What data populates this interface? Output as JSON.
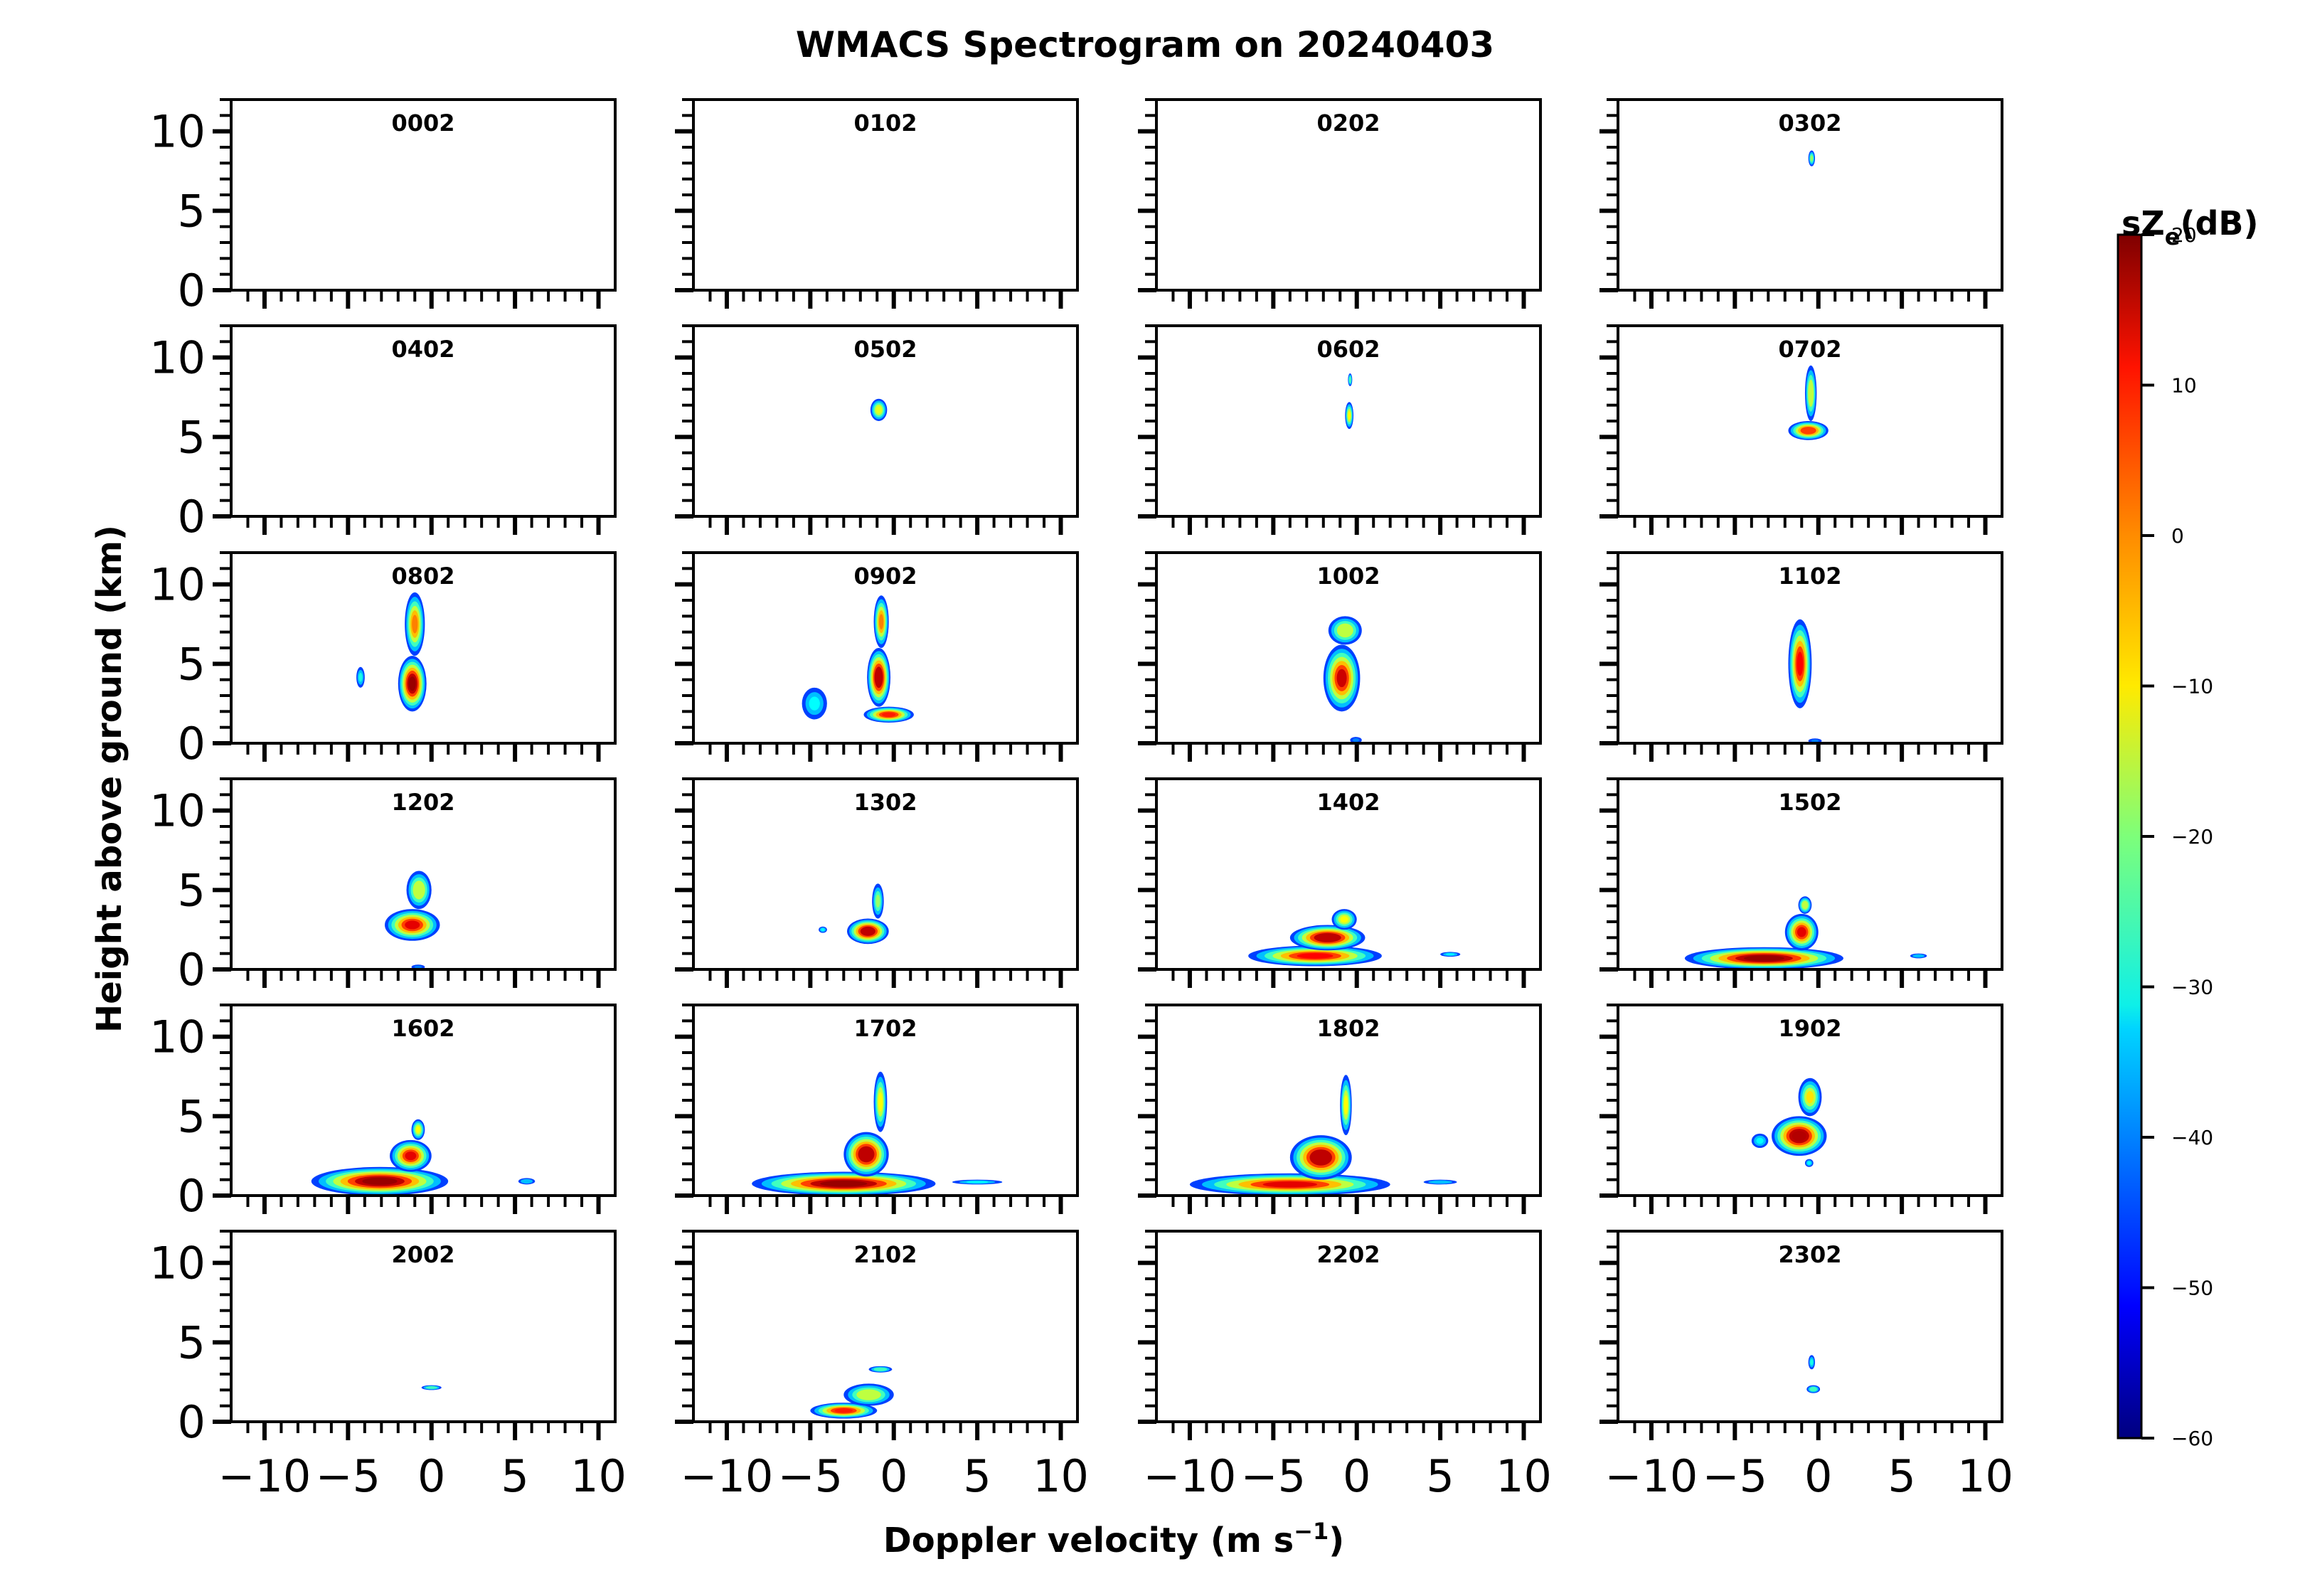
{
  "chart_data": {
    "type": "heatmap",
    "title": "WMACS Spectrogram on 20240403",
    "xlabel": "Doppler velocity (m s",
    "xlabel_sup": "−1",
    "xlabel_close": ")",
    "ylabel": "Height above ground (km)",
    "xlim": [
      -12,
      11
    ],
    "ylim": [
      0,
      12
    ],
    "xticks": [
      -10,
      -5,
      0,
      5,
      10
    ],
    "xtick_labels": [
      "−10",
      "−5",
      "0",
      "5",
      "10"
    ],
    "yticks": [
      0,
      5,
      10
    ],
    "ytick_labels": [
      "0",
      "5",
      "10"
    ],
    "colorbar": {
      "label": "sZ",
      "label_sub": "e",
      "label_unit": "(dB)",
      "range": [
        -60,
        20
      ],
      "ticks": [
        -60,
        -50,
        -40,
        -30,
        -20,
        -10,
        0,
        10,
        20
      ],
      "tick_labels": [
        "−60",
        "−50",
        "−40",
        "−30",
        "−20",
        "−10",
        "0",
        "10",
        "20"
      ],
      "colormap": "jet"
    },
    "panels": [
      {
        "label": "0002",
        "blobs": []
      },
      {
        "label": "0102",
        "blobs": []
      },
      {
        "label": "0202",
        "blobs": []
      },
      {
        "label": "0302",
        "blobs": [
          {
            "x": [
              -0.6,
              -0.2
            ],
            "y": [
              7.8,
              8.8
            ],
            "peak": -18
          }
        ]
      },
      {
        "label": "0402",
        "blobs": []
      },
      {
        "label": "0502",
        "blobs": [
          {
            "x": [
              -1.4,
              -0.4
            ],
            "y": [
              6.0,
              7.4
            ],
            "peak": -12
          }
        ]
      },
      {
        "label": "0602",
        "blobs": [
          {
            "x": [
              -0.7,
              -0.2
            ],
            "y": [
              5.5,
              7.2
            ],
            "peak": -10
          },
          {
            "x": [
              -0.5,
              -0.3
            ],
            "y": [
              8.2,
              9.0
            ],
            "peak": -25
          }
        ]
      },
      {
        "label": "0702",
        "blobs": [
          {
            "x": [
              -1.8,
              0.6
            ],
            "y": [
              4.8,
              6.0
            ],
            "peak": 5
          },
          {
            "x": [
              -0.8,
              -0.1
            ],
            "y": [
              6.0,
              9.5
            ],
            "peak": -15
          }
        ]
      },
      {
        "label": "0802",
        "blobs": [
          {
            "x": [
              -2.0,
              -0.3
            ],
            "y": [
              2.0,
              5.5
            ],
            "peak": 18
          },
          {
            "x": [
              -1.6,
              -0.4
            ],
            "y": [
              5.5,
              9.5
            ],
            "peak": 0
          },
          {
            "x": [
              -4.5,
              -4.0
            ],
            "y": [
              3.5,
              4.8
            ],
            "peak": -28
          }
        ]
      },
      {
        "label": "0902",
        "blobs": [
          {
            "x": [
              -1.8,
              1.2
            ],
            "y": [
              1.3,
              2.3
            ],
            "peak": 8
          },
          {
            "x": [
              -1.6,
              -0.2
            ],
            "y": [
              2.3,
              6.0
            ],
            "peak": 15
          },
          {
            "x": [
              -1.2,
              -0.3
            ],
            "y": [
              6.0,
              9.3
            ],
            "peak": 0
          },
          {
            "x": [
              -5.5,
              -4.0
            ],
            "y": [
              1.5,
              3.5
            ],
            "peak": -30
          }
        ]
      },
      {
        "label": "1002",
        "blobs": [
          {
            "x": [
              -2.0,
              0.2
            ],
            "y": [
              2.0,
              6.2
            ],
            "peak": 14
          },
          {
            "x": [
              -1.7,
              0.3
            ],
            "y": [
              6.2,
              8.0
            ],
            "peak": -15
          },
          {
            "x": [
              -0.4,
              0.3
            ],
            "y": [
              0.0,
              0.4
            ],
            "peak": -40
          }
        ]
      },
      {
        "label": "1102",
        "blobs": [
          {
            "x": [
              -1.8,
              -0.4
            ],
            "y": [
              2.2,
              7.8
            ],
            "peak": 10
          },
          {
            "x": [
              -0.6,
              0.2
            ],
            "y": [
              0.0,
              0.3
            ],
            "peak": -40
          }
        ]
      },
      {
        "label": "1202",
        "blobs": [
          {
            "x": [
              -2.8,
              0.5
            ],
            "y": [
              1.8,
              3.8
            ],
            "peak": 12
          },
          {
            "x": [
              -1.5,
              0.0
            ],
            "y": [
              3.8,
              6.2
            ],
            "peak": -15
          },
          {
            "x": [
              -1.2,
              -0.4
            ],
            "y": [
              0.0,
              0.3
            ],
            "peak": -40
          }
        ]
      },
      {
        "label": "1302",
        "blobs": [
          {
            "x": [
              -2.8,
              -0.3
            ],
            "y": [
              1.6,
              3.2
            ],
            "peak": 15
          },
          {
            "x": [
              -1.3,
              -0.6
            ],
            "y": [
              3.2,
              5.4
            ],
            "peak": -18
          },
          {
            "x": [
              -4.5,
              -4.0
            ],
            "y": [
              2.3,
              2.7
            ],
            "peak": -30
          }
        ]
      },
      {
        "label": "1402",
        "blobs": [
          {
            "x": [
              -6.5,
              1.5
            ],
            "y": [
              0.2,
              1.5
            ],
            "peak": 10
          },
          {
            "x": [
              -4.0,
              0.5
            ],
            "y": [
              1.2,
              2.8
            ],
            "peak": 15
          },
          {
            "x": [
              -1.5,
              0.0
            ],
            "y": [
              2.5,
              3.8
            ],
            "peak": -10
          },
          {
            "x": [
              5.0,
              6.2
            ],
            "y": [
              0.8,
              1.1
            ],
            "peak": -30
          }
        ]
      },
      {
        "label": "1502",
        "blobs": [
          {
            "x": [
              -8.0,
              1.5
            ],
            "y": [
              0.0,
              1.4
            ],
            "peak": 18
          },
          {
            "x": [
              -2.0,
              0.0
            ],
            "y": [
              1.2,
              3.5
            ],
            "peak": 12
          },
          {
            "x": [
              -1.2,
              -0.4
            ],
            "y": [
              3.5,
              4.6
            ],
            "peak": -15
          },
          {
            "x": [
              5.5,
              6.5
            ],
            "y": [
              0.7,
              1.0
            ],
            "peak": -35
          }
        ]
      },
      {
        "label": "1602",
        "blobs": [
          {
            "x": [
              -7.2,
              1.0
            ],
            "y": [
              0.0,
              1.8
            ],
            "peak": 18
          },
          {
            "x": [
              -2.5,
              0.0
            ],
            "y": [
              1.5,
              3.5
            ],
            "peak": 12
          },
          {
            "x": [
              -1.2,
              -0.4
            ],
            "y": [
              3.5,
              4.8
            ],
            "peak": -10
          },
          {
            "x": [
              5.2,
              6.2
            ],
            "y": [
              0.7,
              1.1
            ],
            "peak": -35
          }
        ]
      },
      {
        "label": "1702",
        "blobs": [
          {
            "x": [
              -8.5,
              2.5
            ],
            "y": [
              0.0,
              1.5
            ],
            "peak": 18
          },
          {
            "x": [
              -3.0,
              -0.3
            ],
            "y": [
              1.2,
              4.0
            ],
            "peak": 15
          },
          {
            "x": [
              -1.2,
              -0.4
            ],
            "y": [
              4.0,
              7.8
            ],
            "peak": -10
          },
          {
            "x": [
              3.5,
              6.5
            ],
            "y": [
              0.7,
              1.0
            ],
            "peak": -30
          }
        ]
      },
      {
        "label": "1802",
        "blobs": [
          {
            "x": [
              -10.0,
              2.0
            ],
            "y": [
              0.0,
              1.4
            ],
            "peak": 12
          },
          {
            "x": [
              -4.0,
              -0.3
            ],
            "y": [
              1.0,
              3.8
            ],
            "peak": 15
          },
          {
            "x": [
              -1.0,
              -0.3
            ],
            "y": [
              3.8,
              7.6
            ],
            "peak": -10
          },
          {
            "x": [
              4.0,
              6.0
            ],
            "y": [
              0.7,
              1.0
            ],
            "peak": -35
          }
        ]
      },
      {
        "label": "1902",
        "blobs": [
          {
            "x": [
              -2.8,
              0.5
            ],
            "y": [
              2.5,
              5.0
            ],
            "peak": 16
          },
          {
            "x": [
              -1.2,
              0.2
            ],
            "y": [
              5.0,
              7.4
            ],
            "peak": -8
          },
          {
            "x": [
              -4.0,
              -3.0
            ],
            "y": [
              3.0,
              3.9
            ],
            "peak": -30
          },
          {
            "x": [
              -0.8,
              -0.3
            ],
            "y": [
              1.8,
              2.3
            ],
            "peak": -30
          }
        ]
      },
      {
        "label": "2002",
        "blobs": [
          {
            "x": [
              -0.6,
              0.6
            ],
            "y": [
              2.0,
              2.3
            ],
            "peak": -25
          }
        ]
      },
      {
        "label": "2102",
        "blobs": [
          {
            "x": [
              -5.0,
              -1.0
            ],
            "y": [
              0.2,
              1.2
            ],
            "peak": 8
          },
          {
            "x": [
              -3.0,
              0.0
            ],
            "y": [
              1.0,
              2.4
            ],
            "peak": -15
          },
          {
            "x": [
              -1.5,
              -0.1
            ],
            "y": [
              3.1,
              3.5
            ],
            "peak": -25
          }
        ]
      },
      {
        "label": "2202",
        "blobs": []
      },
      {
        "label": "2302",
        "blobs": [
          {
            "x": [
              -0.7,
              0.1
            ],
            "y": [
              1.8,
              2.3
            ],
            "peak": -25
          },
          {
            "x": [
              -0.6,
              -0.2
            ],
            "y": [
              3.3,
              4.2
            ],
            "peak": -28
          }
        ]
      }
    ]
  }
}
